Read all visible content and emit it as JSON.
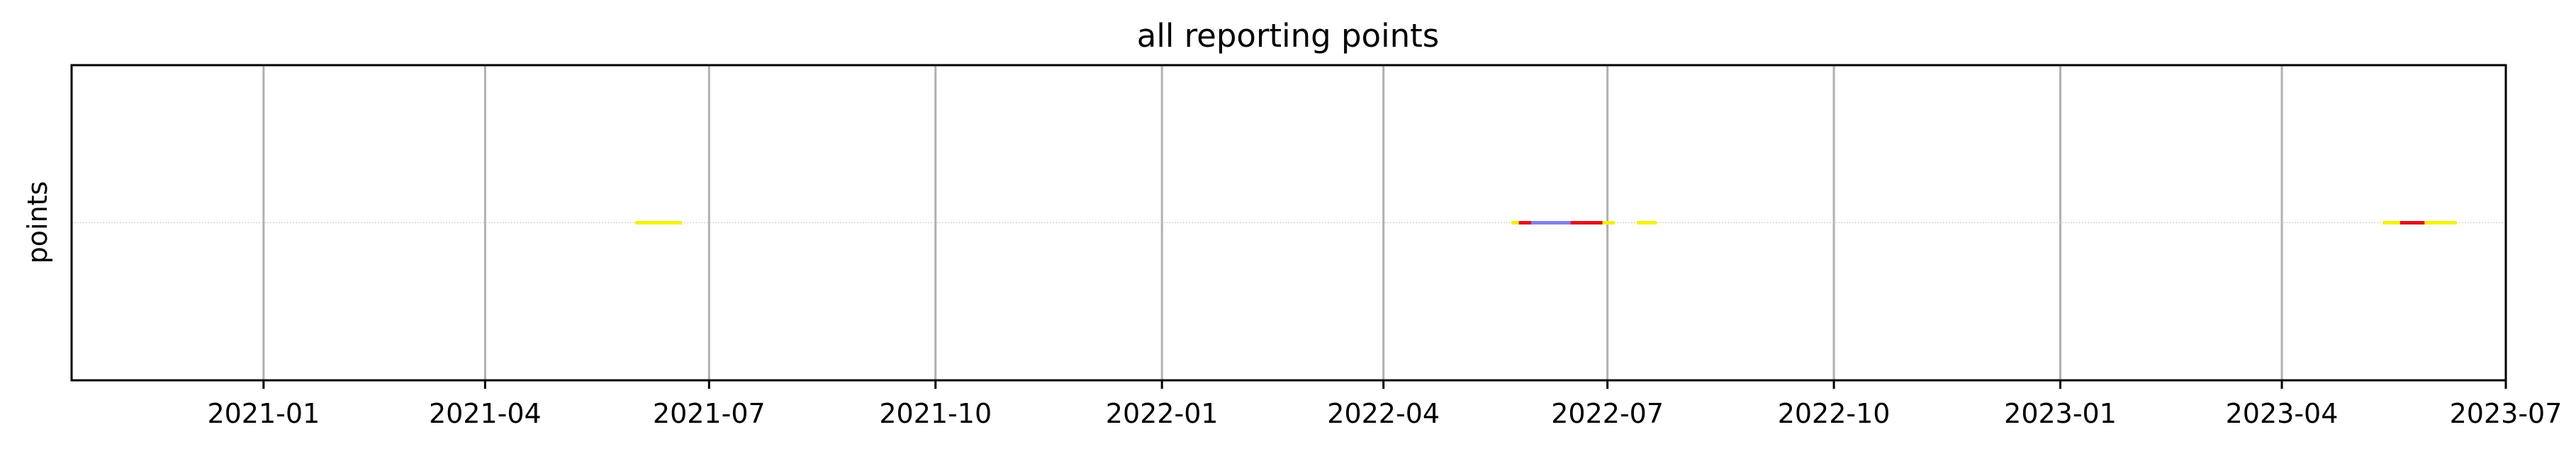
{
  "chart_data": {
    "type": "timeline",
    "title": "all reporting points",
    "xlabel": "",
    "ylabel": "points",
    "xlim": [
      "2020-10-15",
      "2023-07-01"
    ],
    "x_ticks": [
      "2021-01",
      "2021-04",
      "2021-07",
      "2021-10",
      "2022-01",
      "2022-04",
      "2022-07",
      "2022-10",
      "2023-01",
      "2023-04",
      "2023-07"
    ],
    "grid": "vertical",
    "colors": {
      "yellow": "#f2f20a",
      "red": "#e0141e",
      "blue": "#8080e8",
      "grid": "#b0b0b0",
      "baseline": "#cccccc"
    },
    "segments": [
      {
        "start": "2021-06-01",
        "end": "2021-06-20",
        "color": "yellow"
      },
      {
        "start": "2022-05-23",
        "end": "2022-05-26",
        "color": "yellow"
      },
      {
        "start": "2022-05-26",
        "end": "2022-05-31",
        "color": "red"
      },
      {
        "start": "2022-05-31",
        "end": "2022-06-16",
        "color": "blue"
      },
      {
        "start": "2022-06-16",
        "end": "2022-06-29",
        "color": "red"
      },
      {
        "start": "2022-06-29",
        "end": "2022-07-04",
        "color": "yellow"
      },
      {
        "start": "2022-07-13",
        "end": "2022-07-21",
        "color": "yellow"
      },
      {
        "start": "2023-05-12",
        "end": "2023-05-19",
        "color": "yellow"
      },
      {
        "start": "2023-05-19",
        "end": "2023-05-29",
        "color": "red"
      },
      {
        "start": "2023-05-29",
        "end": "2023-06-11",
        "color": "yellow"
      }
    ]
  }
}
